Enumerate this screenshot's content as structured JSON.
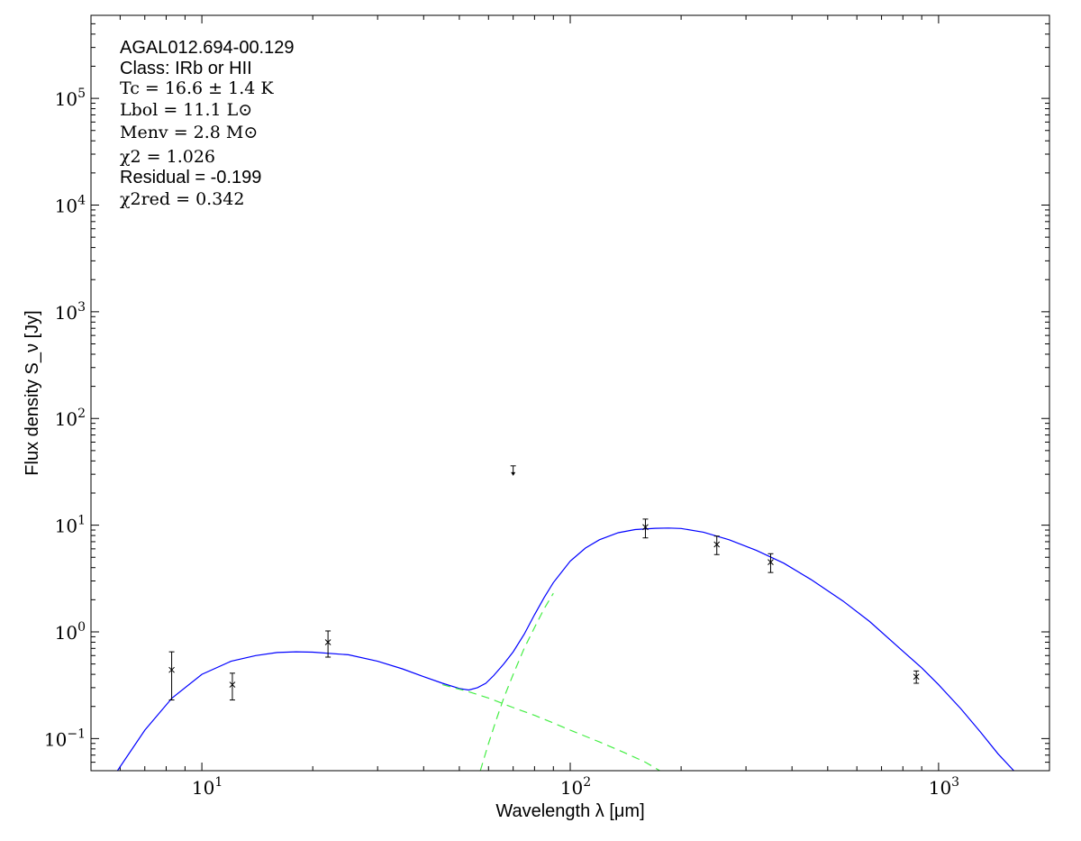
{
  "chart_data": {
    "type": "scatter",
    "xscale": "log",
    "yscale": "log",
    "xlim": [
      5,
      2000
    ],
    "ylim": [
      0.05,
      600000
    ],
    "xlabel": "Wavelength λ [μm]",
    "ylabel": "Flux density S_ν [Jy]",
    "x_ticks": [
      {
        "value": 10,
        "base": "10",
        "exp": "1"
      },
      {
        "value": 100,
        "base": "10",
        "exp": "2"
      },
      {
        "value": 1000,
        "base": "10",
        "exp": "3"
      }
    ],
    "y_ticks": [
      {
        "value": 0.1,
        "base": "10",
        "exp": "−1"
      },
      {
        "value": 1,
        "base": "10",
        "exp": "0"
      },
      {
        "value": 10,
        "base": "10",
        "exp": "1"
      },
      {
        "value": 100,
        "base": "10",
        "exp": "2"
      },
      {
        "value": 1000,
        "base": "10",
        "exp": "3"
      },
      {
        "value": 10000,
        "base": "10",
        "exp": "4"
      },
      {
        "value": 100000,
        "base": "10",
        "exp": "5"
      }
    ],
    "annotations": {
      "source": "AGAL012.694-00.129",
      "class_line": "Class: IRb or HII",
      "tc": "Tc = 16.6 ± 1.4 K",
      "lbol": "Lbol = 11.1 L⊙",
      "menv": "Menv = 2.8 M⊙",
      "chi2": "χ2 = 1.026",
      "residual": "Residual = -0.199",
      "chi2_red": "χ2red = 0.342"
    },
    "data_points": [
      {
        "x": 8.28,
        "y": 0.44,
        "ylow": 0.23,
        "yhigh": 0.65
      },
      {
        "x": 12.1,
        "y": 0.32,
        "ylow": 0.23,
        "yhigh": 0.41
      },
      {
        "x": 22.0,
        "y": 0.8,
        "ylow": 0.58,
        "yhigh": 1.02
      },
      {
        "x": 160,
        "y": 9.6,
        "ylow": 7.6,
        "yhigh": 11.4
      },
      {
        "x": 250,
        "y": 6.6,
        "ylow": 5.3,
        "yhigh": 7.9
      },
      {
        "x": 350,
        "y": 4.5,
        "ylow": 3.6,
        "yhigh": 5.4
      },
      {
        "x": 870,
        "y": 0.38,
        "ylow": 0.33,
        "yhigh": 0.43
      }
    ],
    "upper_limits": [
      {
        "x": 70,
        "y": 32
      }
    ],
    "series": [
      {
        "role": "total model",
        "style": "solid",
        "color": "#0000ff",
        "points": [
          [
            5.9,
            0.05
          ],
          [
            7,
            0.12
          ],
          [
            8.3,
            0.24
          ],
          [
            10,
            0.4
          ],
          [
            12,
            0.53
          ],
          [
            14,
            0.6
          ],
          [
            16,
            0.64
          ],
          [
            18,
            0.65
          ],
          [
            20,
            0.645
          ],
          [
            25,
            0.61
          ],
          [
            30,
            0.53
          ],
          [
            35,
            0.45
          ],
          [
            40,
            0.38
          ],
          [
            45,
            0.33
          ],
          [
            50,
            0.295
          ],
          [
            53,
            0.285
          ],
          [
            56,
            0.3
          ],
          [
            59,
            0.33
          ],
          [
            62,
            0.39
          ],
          [
            66,
            0.5
          ],
          [
            70,
            0.65
          ],
          [
            75,
            0.95
          ],
          [
            80,
            1.45
          ],
          [
            85,
            2.1
          ],
          [
            90,
            2.9
          ],
          [
            100,
            4.6
          ],
          [
            110,
            6.1
          ],
          [
            120,
            7.3
          ],
          [
            135,
            8.5
          ],
          [
            150,
            9.1
          ],
          [
            170,
            9.35
          ],
          [
            185,
            9.4
          ],
          [
            200,
            9.3
          ],
          [
            230,
            8.6
          ],
          [
            270,
            7.3
          ],
          [
            320,
            5.8
          ],
          [
            380,
            4.4
          ],
          [
            450,
            3.1
          ],
          [
            550,
            1.95
          ],
          [
            650,
            1.25
          ],
          [
            800,
            0.66
          ],
          [
            900,
            0.46
          ],
          [
            1000,
            0.32
          ],
          [
            1150,
            0.19
          ],
          [
            1300,
            0.115
          ],
          [
            1450,
            0.072
          ],
          [
            1600,
            0.05
          ]
        ]
      },
      {
        "role": "warm component",
        "style": "dashed",
        "color": "#44ee44",
        "points": [
          [
            45,
            0.32
          ],
          [
            53,
            0.275
          ],
          [
            60,
            0.24
          ],
          [
            70,
            0.195
          ],
          [
            80,
            0.165
          ],
          [
            90,
            0.14
          ],
          [
            100,
            0.12
          ],
          [
            120,
            0.093
          ],
          [
            140,
            0.074
          ],
          [
            160,
            0.06
          ],
          [
            175,
            0.05
          ]
        ]
      },
      {
        "role": "cold component",
        "style": "dashed",
        "color": "#44ee44",
        "points": [
          [
            57,
            0.05
          ],
          [
            60,
            0.09
          ],
          [
            63,
            0.15
          ],
          [
            66,
            0.24
          ],
          [
            70,
            0.4
          ],
          [
            75,
            0.7
          ],
          [
            80,
            1.1
          ],
          [
            85,
            1.65
          ],
          [
            90,
            2.3
          ]
        ]
      }
    ]
  }
}
